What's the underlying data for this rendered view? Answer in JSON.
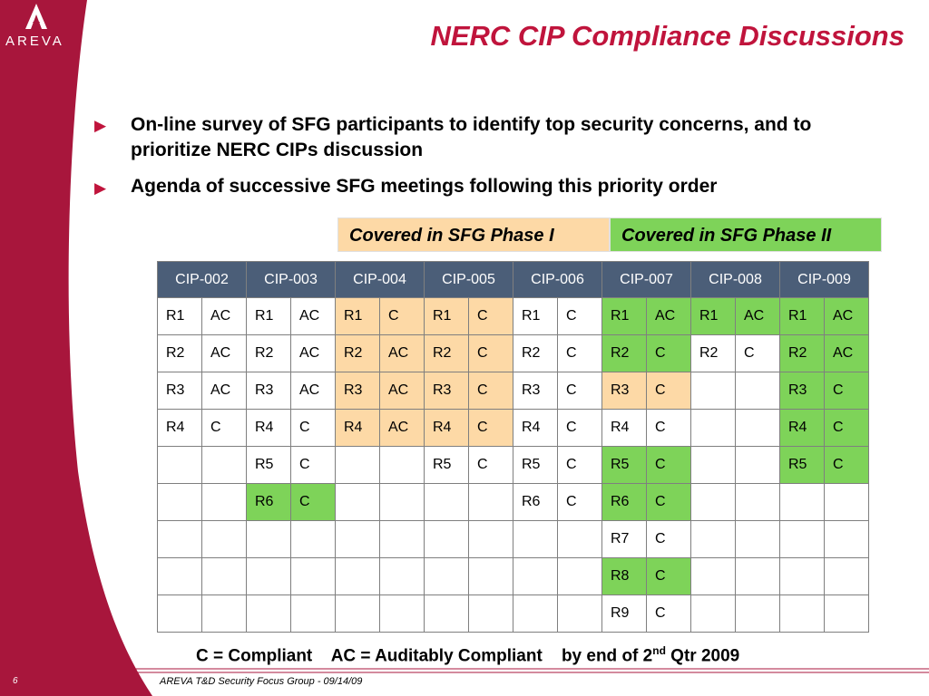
{
  "brand": {
    "name": "AREVA",
    "color": "#a8163c"
  },
  "title": "NERC CIP Compliance Discussions",
  "bullets": [
    "On-line survey of SFG participants to identify top security concerns, and to prioritize NERC CIPs discussion",
    "Agenda of successive SFG meetings following this priority order"
  ],
  "legend": {
    "phase1": {
      "label": "Covered in SFG Phase I",
      "color": "#fdd9a6"
    },
    "phase2": {
      "label": "Covered in SFG Phase II",
      "color": "#7ed359"
    }
  },
  "table": {
    "headers": [
      "CIP-002",
      "CIP-003",
      "CIP-004",
      "CIP-005",
      "CIP-006",
      "CIP-007",
      "CIP-008",
      "CIP-009"
    ],
    "rows": [
      [
        [
          "R1",
          "AC",
          ""
        ],
        [
          "R1",
          "AC",
          ""
        ],
        [
          "R1",
          "C",
          "p1"
        ],
        [
          "R1",
          "C",
          "p1"
        ],
        [
          "R1",
          "C",
          ""
        ],
        [
          "R1",
          "AC",
          "p2"
        ],
        [
          "R1",
          "AC",
          "p2"
        ],
        [
          "R1",
          "AC",
          "p2"
        ]
      ],
      [
        [
          "R2",
          "AC",
          ""
        ],
        [
          "R2",
          "AC",
          ""
        ],
        [
          "R2",
          "AC",
          "p1"
        ],
        [
          "R2",
          "C",
          "p1"
        ],
        [
          "R2",
          "C",
          ""
        ],
        [
          "R2",
          "C",
          "p2"
        ],
        [
          "R2",
          "C",
          ""
        ],
        [
          "R2",
          "AC",
          "p2"
        ]
      ],
      [
        [
          "R3",
          "AC",
          ""
        ],
        [
          "R3",
          "AC",
          ""
        ],
        [
          "R3",
          "AC",
          "p1"
        ],
        [
          "R3",
          "C",
          "p1"
        ],
        [
          "R3",
          "C",
          ""
        ],
        [
          "R3",
          "C",
          "p1"
        ],
        [
          "",
          "",
          ""
        ],
        [
          "R3",
          "C",
          "p2"
        ]
      ],
      [
        [
          "R4",
          "C",
          ""
        ],
        [
          "R4",
          "C",
          ""
        ],
        [
          "R4",
          "AC",
          "p1"
        ],
        [
          "R4",
          "C",
          "p1"
        ],
        [
          "R4",
          "C",
          ""
        ],
        [
          "R4",
          "C",
          ""
        ],
        [
          "",
          "",
          ""
        ],
        [
          "R4",
          "C",
          "p2"
        ]
      ],
      [
        [
          "",
          "",
          ""
        ],
        [
          "R5",
          "C",
          ""
        ],
        [
          "",
          "",
          ""
        ],
        [
          "R5",
          "C",
          ""
        ],
        [
          "R5",
          "C",
          ""
        ],
        [
          "R5",
          "C",
          "p2"
        ],
        [
          "",
          "",
          ""
        ],
        [
          "R5",
          "C",
          "p2"
        ]
      ],
      [
        [
          "",
          "",
          ""
        ],
        [
          "R6",
          "C",
          "p2"
        ],
        [
          "",
          "",
          ""
        ],
        [
          "",
          "",
          ""
        ],
        [
          "R6",
          "C",
          ""
        ],
        [
          "R6",
          "C",
          "p2"
        ],
        [
          "",
          "",
          ""
        ],
        [
          "",
          "",
          ""
        ]
      ],
      [
        [
          "",
          "",
          ""
        ],
        [
          "",
          "",
          ""
        ],
        [
          "",
          "",
          ""
        ],
        [
          "",
          "",
          ""
        ],
        [
          "",
          "",
          ""
        ],
        [
          "R7",
          "C",
          ""
        ],
        [
          "",
          "",
          ""
        ],
        [
          "",
          "",
          ""
        ]
      ],
      [
        [
          "",
          "",
          ""
        ],
        [
          "",
          "",
          ""
        ],
        [
          "",
          "",
          ""
        ],
        [
          "",
          "",
          ""
        ],
        [
          "",
          "",
          ""
        ],
        [
          "R8",
          "C",
          "p2"
        ],
        [
          "",
          "",
          ""
        ],
        [
          "",
          "",
          ""
        ]
      ],
      [
        [
          "",
          "",
          ""
        ],
        [
          "",
          "",
          ""
        ],
        [
          "",
          "",
          ""
        ],
        [
          "",
          "",
          ""
        ],
        [
          "",
          "",
          ""
        ],
        [
          "R9",
          "C",
          ""
        ],
        [
          "",
          "",
          ""
        ],
        [
          "",
          "",
          ""
        ]
      ]
    ]
  },
  "note": {
    "compliant": "C = Compliant",
    "auditably": "AC = Auditably Compliant",
    "by_end": "by end of 2",
    "sup": "nd",
    "qtr": " Qtr 2009"
  },
  "footer": {
    "page": "6",
    "text": "AREVA T&D Security Focus Group  - 09/14/09"
  }
}
